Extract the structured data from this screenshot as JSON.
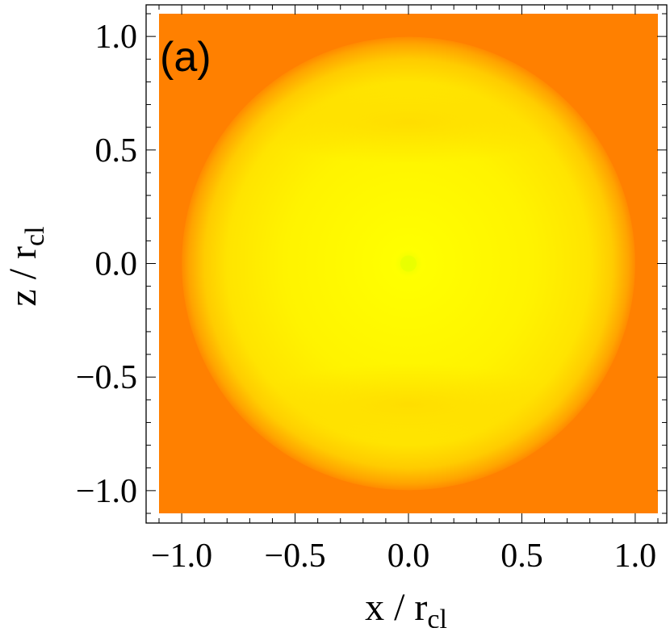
{
  "panel_label": "(a)",
  "chart_data": {
    "type": "heatmap",
    "title": "",
    "xlabel": {
      "main": "x / r",
      "sub": "cl"
    },
    "ylabel": {
      "main": "z / r",
      "sub": "cl"
    },
    "xlim": [
      -1.1,
      1.1
    ],
    "ylim": [
      -1.1,
      1.1
    ],
    "x_ticks": [
      {
        "value": -1.0,
        "label": "−1.0"
      },
      {
        "value": -0.5,
        "label": "−0.5"
      },
      {
        "value": 0.0,
        "label": "0.0"
      },
      {
        "value": 0.5,
        "label": "0.5"
      },
      {
        "value": 1.0,
        "label": "1.0"
      }
    ],
    "y_ticks": [
      {
        "value": -1.0,
        "label": "−1.0"
      },
      {
        "value": -0.5,
        "label": "−0.5"
      },
      {
        "value": 0.0,
        "label": "0.0"
      },
      {
        "value": 0.5,
        "label": "0.5"
      },
      {
        "value": 1.0,
        "label": "1.0"
      }
    ],
    "grid": false,
    "legend": "none",
    "colormap": {
      "outside": "#ff8000",
      "edge": "#ffaa00",
      "inner": "#ffee00",
      "center": "#e8ff00"
    },
    "features": {
      "disk_radius": 1.0,
      "rings": [
        {
          "name": "upper-band",
          "center_z": 0.62,
          "half_width": 0.18,
          "color": "#ffd800"
        },
        {
          "name": "lower-band",
          "center_z": -0.62,
          "half_width": 0.18,
          "color": "#ffd800"
        }
      ],
      "center_dot": {
        "x": 0.0,
        "z": 0.0,
        "color": "#e8ff00"
      }
    }
  }
}
